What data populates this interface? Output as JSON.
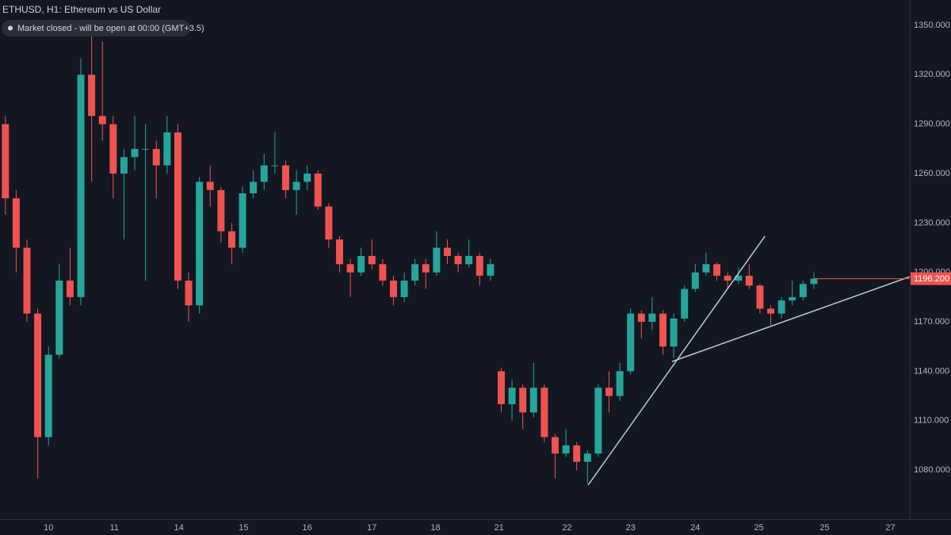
{
  "chart_data": {
    "type": "candlestick",
    "title": "ETHUSD, H1: Ethereum vs US Dollar",
    "status": "Market closed - will be open at 00:00 (GMT+3.5)",
    "x": [
      0.5,
      1.5,
      2.5,
      3.5,
      4.5,
      5.5,
      6.5,
      7.5,
      8.5,
      9.5,
      10.5,
      11.5,
      12.5,
      13.5,
      14.5,
      15.5,
      16.5,
      17.5,
      18.5,
      19.5,
      20.5,
      21.5,
      22.5,
      23.5,
      24.5,
      25.5,
      26.5,
      27.5,
      28.5,
      29.5,
      30.5,
      31.5,
      32.5,
      33.5,
      34.5,
      35.5,
      36.5,
      37.5,
      38.5,
      39.5,
      40.5,
      41.5,
      42.5,
      43.5,
      44.5,
      45.5,
      46.5,
      47.5,
      48.5,
      49.5,
      50.5,
      51.5,
      52.5,
      53.5,
      54.5,
      55.5,
      56.5,
      57.5,
      58.5,
      59.5,
      60.5,
      61.5,
      62.5,
      63.5,
      64.5,
      65.5,
      66.5,
      67.5,
      68.5,
      69.5,
      70.5,
      71.5,
      72.5,
      73.5,
      74.5,
      75.5
    ],
    "open": [
      1290,
      1245,
      1215,
      1175,
      1100,
      1150,
      1195,
      1185,
      1320,
      1295,
      1290,
      1260,
      1270,
      1275,
      1275,
      1265,
      1285,
      1195,
      1180,
      1255,
      1250,
      1225,
      1215,
      1248,
      1255,
      1265,
      1265,
      1250,
      1255,
      1260,
      1240,
      1220,
      1205,
      1200,
      1210,
      1205,
      1195,
      1185,
      1195,
      1205,
      1200,
      1215,
      1210,
      1205,
      1210,
      1198,
      1140,
      1120,
      1130,
      1115,
      1130,
      1100,
      1090,
      1095,
      1085,
      1090,
      1130,
      1125,
      1140,
      1175,
      1170,
      1175,
      1155,
      1172,
      1190,
      1200,
      1205,
      1198,
      1195,
      1198,
      1192,
      1178,
      1175,
      1183,
      1185,
      1193
    ],
    "high": [
      1295,
      1250,
      1220,
      1178,
      1155,
      1205,
      1215,
      1330,
      1345,
      1340,
      1295,
      1275,
      1295,
      1290,
      1280,
      1295,
      1290,
      1200,
      1258,
      1265,
      1252,
      1230,
      1252,
      1262,
      1272,
      1285,
      1268,
      1262,
      1265,
      1262,
      1242,
      1222,
      1208,
      1215,
      1220,
      1208,
      1198,
      1200,
      1208,
      1208,
      1225,
      1220,
      1212,
      1220,
      1212,
      1208,
      1142,
      1135,
      1132,
      1145,
      1132,
      1102,
      1105,
      1097,
      1092,
      1132,
      1140,
      1145,
      1178,
      1177,
      1185,
      1177,
      1175,
      1192,
      1205,
      1212,
      1206,
      1200,
      1203,
      1205,
      1193,
      1180,
      1185,
      1195,
      1195,
      1200
    ],
    "low": [
      1235,
      1200,
      1170,
      1075,
      1095,
      1148,
      1180,
      1180,
      1255,
      1280,
      1245,
      1220,
      1262,
      1195,
      1245,
      1260,
      1190,
      1170,
      1175,
      1240,
      1218,
      1205,
      1212,
      1245,
      1250,
      1260,
      1245,
      1235,
      1250,
      1238,
      1215,
      1200,
      1185,
      1198,
      1202,
      1192,
      1180,
      1182,
      1192,
      1190,
      1198,
      1205,
      1200,
      1203,
      1192,
      1195,
      1115,
      1110,
      1105,
      1112,
      1097,
      1075,
      1088,
      1080,
      1072,
      1088,
      1115,
      1122,
      1138,
      1160,
      1165,
      1150,
      1148,
      1170,
      1188,
      1198,
      1195,
      1190,
      1193,
      1190,
      1175,
      1168,
      1172,
      1180,
      1183,
      1190
    ],
    "close": [
      1245,
      1215,
      1175,
      1100,
      1150,
      1195,
      1185,
      1320,
      1295,
      1290,
      1260,
      1270,
      1275,
      1275,
      1265,
      1285,
      1195,
      1180,
      1255,
      1250,
      1225,
      1215,
      1248,
      1255,
      1265,
      1265,
      1250,
      1255,
      1260,
      1240,
      1220,
      1205,
      1200,
      1210,
      1205,
      1195,
      1185,
      1195,
      1205,
      1200,
      1215,
      1210,
      1205,
      1210,
      1198,
      1205,
      1120,
      1130,
      1115,
      1130,
      1100,
      1090,
      1095,
      1085,
      1090,
      1130,
      1125,
      1140,
      1175,
      1170,
      1175,
      1155,
      1172,
      1190,
      1200,
      1205,
      1198,
      1195,
      1198,
      1192,
      1178,
      1175,
      1183,
      1185,
      1193,
      1196.2
    ],
    "up_color": "#26a69a",
    "down_color": "#ef5350",
    "last_price": {
      "value": 1196.2,
      "label": "1196.200"
    },
    "trendlines": [
      {
        "x": [
          54.56,
          70.96
        ],
        "y": [
          1070.9,
          1222.0
        ]
      },
      {
        "x": [
          62.35,
          84.4
        ],
        "y": [
          1145.9,
          1197.4
        ]
      }
    ],
    "trendline_color": "#b2cdd6",
    "xlim": [
      0,
      84.4
    ],
    "ylim": [
      1050.2,
      1365.4
    ],
    "xticks": [
      {
        "value": 4.5,
        "label": "10"
      },
      {
        "value": 10.6,
        "label": "11"
      },
      {
        "value": 16.6,
        "label": "14"
      },
      {
        "value": 22.6,
        "label": "15"
      },
      {
        "value": 28.5,
        "label": "16"
      },
      {
        "value": 34.5,
        "label": "17"
      },
      {
        "value": 40.4,
        "label": "18"
      },
      {
        "value": 46.3,
        "label": "21"
      },
      {
        "value": 52.6,
        "label": "22"
      },
      {
        "value": 58.5,
        "label": "23"
      },
      {
        "value": 64.5,
        "label": "24"
      },
      {
        "value": 70.4,
        "label": "25"
      },
      {
        "value": 76.5,
        "label": "25"
      },
      {
        "value": 82.6,
        "label": "27"
      }
    ],
    "yticks": [
      {
        "value": 1080,
        "label": "1080.000"
      },
      {
        "value": 1110,
        "label": "1110.000"
      },
      {
        "value": 1140,
        "label": "1140.000"
      },
      {
        "value": 1170,
        "label": "1170.000"
      },
      {
        "value": 1200,
        "label": "1200.000"
      },
      {
        "value": 1230,
        "label": "1230.000"
      },
      {
        "value": 1260,
        "label": "1260.000"
      },
      {
        "value": 1290,
        "label": "1290.000"
      },
      {
        "value": 1320,
        "label": "1320.000"
      },
      {
        "value": 1350,
        "label": "1350.000"
      }
    ],
    "grid": false
  }
}
